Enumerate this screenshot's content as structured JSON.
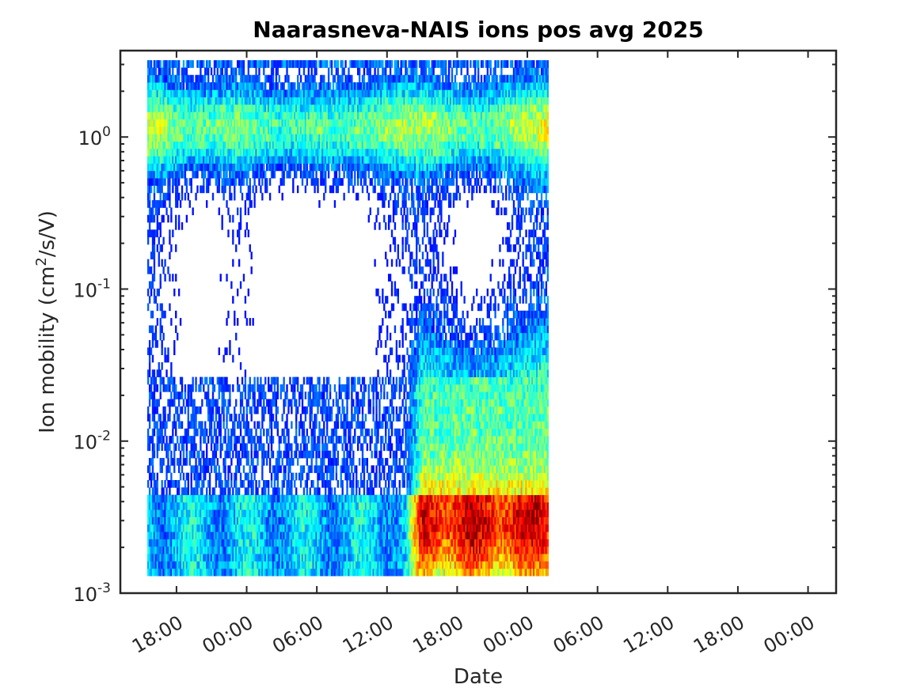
{
  "chart_data": {
    "type": "heatmap",
    "title": "Naarasneva-NAIS ions pos avg 2025",
    "xlabel": "Date",
    "ylabel_main": "Ion mobility (cm",
    "ylabel_sup": "2",
    "ylabel_tail": "/s/V)",
    "x_tick_labels": [
      "18:00",
      "00:00",
      "06:00",
      "12:00",
      "18:00",
      "00:00",
      "06:00",
      "12:00",
      "18:00",
      "00:00"
    ],
    "x_ticks_hours_from_first": [
      0,
      6,
      12,
      18,
      24,
      30,
      36,
      42,
      48,
      54
    ],
    "xlim_hours_from_first": [
      -4.8,
      56.4
    ],
    "data_x_range_hours_from_first": [
      -2.5,
      31.8
    ],
    "y_scale": "log",
    "ylim": [
      0.001,
      3.7
    ],
    "y_ticks": [
      {
        "value": 1,
        "base": "10",
        "exp": "0"
      },
      {
        "value": 0.1,
        "base": "10",
        "exp": "-1"
      },
      {
        "value": 0.01,
        "base": "10",
        "exp": "-2"
      },
      {
        "value": 0.001,
        "base": "10",
        "exp": "-3"
      }
    ],
    "data_y_range": [
      0.0013,
      3.2
    ],
    "colormap": "jet",
    "colors": {
      "dark_blue": "#0000c8",
      "blue": "#0050ff",
      "cyan": "#00e0ff",
      "green": "#80ff80",
      "yellow": "#e8ff20",
      "orange": "#ff9000",
      "red": "#ff3000"
    },
    "grid": false
  }
}
